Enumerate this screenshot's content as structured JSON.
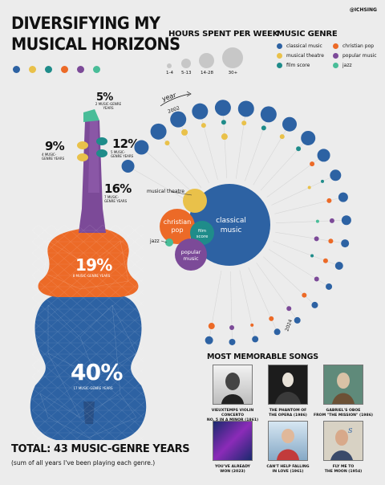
{
  "title_line1": "DIVERSIFYING MY",
  "title_line2": "MUSICAL HORIZONS",
  "handle": "@ICHSING",
  "colors": {
    "classical": "#2d62a3",
    "musical_theatre": "#e9c14a",
    "film_score": "#1f8c8a",
    "christian_pop": "#ec6a27",
    "popular_music": "#7c4a98",
    "jazz": "#49bd98"
  },
  "hours_legend": {
    "title": "HOURS SPENT PER WEEK",
    "sizes": [
      "1-4",
      "5-13",
      "14-28",
      "30+"
    ]
  },
  "genre_legend": {
    "title": "MUSIC GENRE",
    "items": [
      "classical music",
      "christian pop",
      "musical theatre",
      "popular music",
      "film score",
      "jazz"
    ]
  },
  "violin": {
    "p5": "5%",
    "p5_sub": "2 MUSIC-GENRE YEARS",
    "p9": "9%",
    "p9_sub": "4 MUSIC-GENRE YEARS",
    "p12": "12%",
    "p12_sub": "5 MUSIC-GENRE YEARS",
    "p16": "16%",
    "p16_sub": "7 MUSIC-GENRE YEARS",
    "p19": "19%",
    "p19_sub": "8 MUSIC-GENRE YEARS",
    "p40": "40%",
    "p40_sub": "17 MUSIC-GENRE YEARS"
  },
  "timeline": {
    "year_label": "year",
    "start_year": "2002",
    "end_year": "2024"
  },
  "bubbles": {
    "classical_a": "classical",
    "classical_b": "music",
    "christian_a": "christian",
    "christian_b": "pop",
    "film_a": "film",
    "film_b": "score",
    "popular_a": "popular",
    "popular_b": "music",
    "musical_theatre": "musical theatre",
    "jazz": "jazz"
  },
  "songs": {
    "title": "MOST MEMORABLE SONGS",
    "items": [
      {
        "line1": "VIEUXTEMPS VIOLIN CONCERTO",
        "line2": "NO. 5 IN A MINOR (1861)"
      },
      {
        "line1": "THE PHANTOM OF",
        "line2": "THE OPERA (1986)"
      },
      {
        "line1": "GABRIEL'S OBOE",
        "line2": "FROM \"THE MISSION\" (1986)"
      },
      {
        "line1": "YOU'VE ALREADY",
        "line2": "WON (2023)"
      },
      {
        "line1": "CAN'T HELP FALLING",
        "line2": "IN LOVE (1961)"
      },
      {
        "line1": "FLY ME TO",
        "line2": "THE MOON (1954)"
      }
    ]
  },
  "total": "TOTAL: 43 MUSIC-GENRE YEARS",
  "total_sub": "(sum of all years I've been playing each genre.)"
}
